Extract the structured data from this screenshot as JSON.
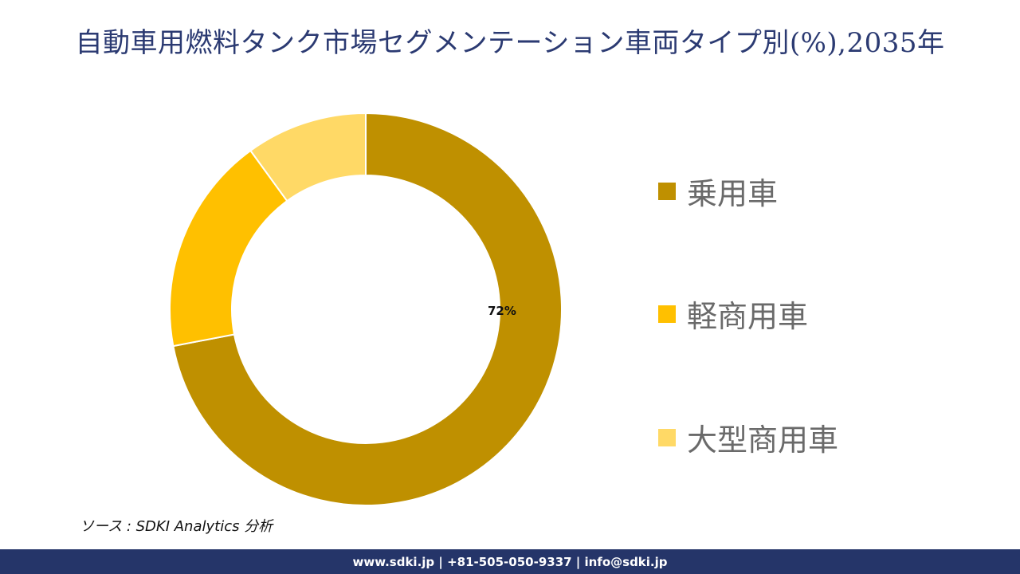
{
  "title": "自動車用燃料タンク市場セグメンテーション車両タイプ別(%),2035年",
  "chart_data": {
    "type": "pie",
    "subtype": "donut",
    "title": "自動車用燃料タンク市場セグメンテーション車両タイプ別(%),2035年",
    "categories": [
      "乗用車",
      "軽商用車",
      "大型商用車"
    ],
    "values": [
      72,
      18,
      10
    ],
    "colors": [
      "#BF9000",
      "#FFC000",
      "#FFD966"
    ],
    "data_labels": [
      "72%",
      "",
      ""
    ],
    "start_angle": 0,
    "direction": "clockwise",
    "legend_position": "right"
  },
  "chart": {
    "center_label": "72%"
  },
  "legend": {
    "items": [
      {
        "label": "乗用車",
        "color": "#BF9000"
      },
      {
        "label": "軽商用車",
        "color": "#FFC000"
      },
      {
        "label": "大型商用車",
        "color": "#FFD966"
      }
    ]
  },
  "source": "ソース : SDKI Analytics 分析",
  "footer": {
    "text": "www.sdki.jp | +81-505-050-9337 | info@sdki.jp",
    "background": "#253569"
  }
}
